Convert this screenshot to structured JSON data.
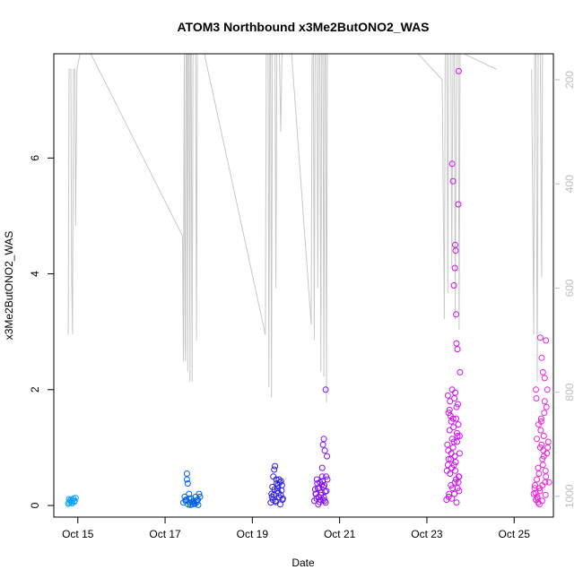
{
  "chart_data": {
    "type": "scatter",
    "title": "ATOM3 Northbound x3Me2ButONO2_WAS",
    "xlabel": "Date",
    "ylabel": "x3Me2ButONO2_WAS",
    "x_ticks": [
      "Oct 15",
      "Oct 17",
      "Oct 19",
      "Oct 21",
      "Oct 23",
      "Oct 25"
    ],
    "x_tick_days": [
      15,
      17,
      19,
      21,
      23,
      25
    ],
    "xlim_days": [
      14.45,
      25.9
    ],
    "y_ticks": [
      0,
      2,
      4,
      6
    ],
    "ylim": [
      -0.2,
      7.8
    ],
    "y2_ticks": [
      200,
      400,
      600,
      800,
      1000
    ],
    "y2lim": [
      1040,
      150
    ],
    "grid": false,
    "legend": "none",
    "colors": {
      "axis": "#000000",
      "secondary_axis": "#bebebe",
      "pressure_line": "#c8c8c8",
      "group_colors": [
        "#0aa2ff",
        "#0060f0",
        "#2f1ee6",
        "#8010f0",
        "#cc11ee",
        "#ee22dd"
      ]
    },
    "series": [
      {
        "group": 1,
        "x": [
          14.8,
          14.82,
          14.84,
          14.86,
          14.88,
          14.9,
          14.92,
          14.95,
          14.78,
          14.8,
          14.87,
          14.93
        ],
        "y": [
          0.05,
          0.08,
          0.1,
          0.06,
          0.09,
          0.12,
          0.07,
          0.13,
          0.03,
          0.11,
          0.04,
          0.08
        ]
      },
      {
        "group": 2,
        "x": [
          17.42,
          17.45,
          17.48,
          17.5,
          17.52,
          17.55,
          17.57,
          17.6,
          17.63,
          17.65,
          17.68,
          17.7,
          17.72,
          17.75,
          17.78,
          17.8,
          17.5,
          17.53,
          17.47,
          17.58,
          17.62,
          17.67,
          17.73,
          17.76,
          17.55
        ],
        "y": [
          0.05,
          0.15,
          0.1,
          0.55,
          0.38,
          0.2,
          0.05,
          0.12,
          0.02,
          0.08,
          0.03,
          0.15,
          0.05,
          0.1,
          0.2,
          0.15,
          0.45,
          0.02,
          0.08,
          0.01,
          0.06,
          0.04,
          0.09,
          0.01,
          0.12
        ]
      },
      {
        "group": 3,
        "x": [
          19.42,
          19.45,
          19.47,
          19.5,
          19.52,
          19.55,
          19.58,
          19.6,
          19.63,
          19.65,
          19.68,
          19.7,
          19.48,
          19.53,
          19.57,
          19.62,
          19.66,
          19.44,
          19.51,
          19.59,
          19.64,
          19.69,
          19.46,
          19.54,
          19.61,
          19.67,
          19.49,
          19.56
        ],
        "y": [
          0.05,
          0.15,
          0.1,
          0.62,
          0.68,
          0.45,
          0.3,
          0.22,
          0.4,
          0.18,
          0.35,
          0.12,
          0.5,
          0.08,
          0.25,
          0.14,
          0.42,
          0.2,
          0.28,
          0.35,
          0.02,
          0.1,
          0.32,
          0.06,
          0.45,
          0.26,
          0.18,
          0.38
        ]
      },
      {
        "group": 4,
        "x": [
          20.42,
          20.45,
          20.48,
          20.5,
          20.52,
          20.55,
          20.58,
          20.6,
          20.62,
          20.65,
          20.68,
          20.7,
          20.72,
          20.47,
          20.53,
          20.57,
          20.61,
          20.66,
          20.44,
          20.51,
          20.59,
          20.64,
          20.69,
          20.46,
          20.54,
          20.63,
          20.67,
          20.49,
          20.56,
          20.6,
          20.71,
          20.62,
          20.64,
          20.66,
          20.68
        ],
        "y": [
          0.08,
          0.2,
          0.45,
          0.3,
          0.15,
          0.4,
          0.22,
          0.5,
          0.1,
          0.35,
          0.05,
          0.25,
          0.45,
          0.12,
          0.3,
          0.18,
          0.42,
          0.08,
          0.28,
          0.02,
          0.36,
          0.14,
          0.5,
          0.2,
          0.06,
          0.32,
          0.24,
          0.38,
          0.1,
          0.65,
          0.85,
          1.05,
          1.15,
          0.95,
          2.0
        ]
      },
      {
        "group": 5,
        "x": [
          23.45,
          23.48,
          23.5,
          23.52,
          23.55,
          23.58,
          23.6,
          23.62,
          23.65,
          23.68,
          23.7,
          23.72,
          23.75,
          23.5,
          23.53,
          23.56,
          23.59,
          23.63,
          23.66,
          23.69,
          23.73,
          23.47,
          23.51,
          23.54,
          23.57,
          23.61,
          23.64,
          23.67,
          23.71,
          23.74,
          23.49,
          23.52,
          23.55,
          23.58,
          23.62,
          23.65,
          23.68,
          23.72,
          23.46,
          23.5,
          23.53,
          23.57,
          23.6,
          23.64,
          23.67,
          23.7,
          23.75,
          23.48,
          23.56,
          23.63,
          23.69,
          23.74,
          23.58,
          23.6,
          23.62,
          23.64,
          23.65,
          23.66,
          23.67,
          23.68,
          23.7,
          23.72,
          23.73,
          23.76
        ],
        "y": [
          0.1,
          1.9,
          1.6,
          1.3,
          0.8,
          2.0,
          1.5,
          1.1,
          0.6,
          1.7,
          1.2,
          0.4,
          0.9,
          0.15,
          0.55,
          1.45,
          0.3,
          1.85,
          0.75,
          1.25,
          0.5,
          1.05,
          0.2,
          1.55,
          0.65,
          1.35,
          0.85,
          0.45,
          1.75,
          0.25,
          0.95,
          1.65,
          0.35,
          1.15,
          0.7,
          1.95,
          0.05,
          1.4,
          0.6,
          0.8,
          1.8,
          0.12,
          1.0,
          0.4,
          1.5,
          0.3,
          1.2,
          0.7,
          0.9,
          0.2,
          1.1,
          0.5,
          5.9,
          5.6,
          3.8,
          4.1,
          4.5,
          4.4,
          3.3,
          2.8,
          2.7,
          5.2,
          7.5,
          2.3
        ]
      },
      {
        "group": 6,
        "x": [
          25.45,
          25.48,
          25.5,
          25.52,
          25.55,
          25.58,
          25.6,
          25.62,
          25.65,
          25.68,
          25.7,
          25.72,
          25.75,
          25.8,
          25.5,
          25.53,
          25.56,
          25.59,
          25.63,
          25.66,
          25.69,
          25.73,
          25.78,
          25.47,
          25.51,
          25.54,
          25.57,
          25.61,
          25.64,
          25.67,
          25.71,
          25.74,
          25.49,
          25.52,
          25.55,
          25.58,
          25.62,
          25.65,
          25.68,
          25.72,
          25.77,
          25.6,
          25.63,
          25.66,
          25.7,
          25.73,
          25.76
        ],
        "y": [
          0.2,
          0.35,
          0.1,
          0.45,
          0.05,
          0.3,
          1.0,
          1.5,
          0.8,
          1.2,
          1.8,
          0.6,
          0.9,
          0.4,
          2.0,
          0.15,
          1.4,
          0.25,
          1.05,
          0.7,
          1.6,
          0.5,
          1.1,
          0.3,
          1.85,
          0.12,
          0.55,
          1.3,
          0.08,
          0.95,
          0.4,
          1.7,
          0.22,
          1.15,
          0.65,
          0.02,
          1.45,
          0.35,
          0.85,
          0.18,
          1.0,
          2.9,
          2.55,
          2.3,
          2.2,
          2.85,
          2.0
        ]
      }
    ],
    "pressure_segments": [
      [
        [
          14.78,
          689
        ],
        [
          14.8,
          180
        ],
        [
          14.84,
          180
        ],
        [
          14.86,
          580
        ],
        [
          14.88,
          689
        ],
        [
          14.9,
          180
        ],
        [
          14.93,
          180
        ],
        [
          14.95,
          480
        ],
        [
          14.98,
          180
        ],
        [
          15.05,
          150
        ]
      ],
      [
        [
          15.3,
          150
        ],
        [
          17.4,
          500
        ],
        [
          17.42,
          740
        ],
        [
          17.43,
          360
        ],
        [
          17.44,
          150
        ],
        [
          17.46,
          710
        ],
        [
          17.47,
          740
        ],
        [
          17.48,
          150
        ],
        [
          17.5,
          150
        ],
        [
          17.52,
          760
        ],
        [
          17.53,
          150
        ],
        [
          17.55,
          150
        ],
        [
          17.57,
          780
        ],
        [
          17.58,
          150
        ],
        [
          17.6,
          150
        ],
        [
          17.62,
          780
        ],
        [
          17.64,
          150
        ],
        [
          17.7,
          150
        ],
        [
          17.72,
          700
        ],
        [
          17.74,
          150
        ],
        [
          17.78,
          150
        ]
      ],
      [
        [
          17.9,
          150
        ],
        [
          19.3,
          690
        ],
        [
          19.32,
          150
        ],
        [
          19.36,
          150
        ],
        [
          19.38,
          790
        ],
        [
          19.4,
          150
        ],
        [
          19.42,
          150
        ],
        [
          19.44,
          810
        ],
        [
          19.46,
          150
        ],
        [
          19.52,
          150
        ],
        [
          19.54,
          600
        ],
        [
          19.56,
          150
        ],
        [
          19.62,
          150
        ],
        [
          19.65,
          300
        ],
        [
          19.68,
          150
        ],
        [
          19.72,
          150
        ]
      ],
      [
        [
          19.9,
          150
        ],
        [
          20.35,
          670
        ],
        [
          20.37,
          150
        ],
        [
          20.4,
          150
        ],
        [
          20.42,
          700
        ],
        [
          20.44,
          150
        ],
        [
          20.48,
          150
        ],
        [
          20.5,
          600
        ],
        [
          20.52,
          150
        ],
        [
          20.55,
          150
        ],
        [
          20.57,
          760
        ],
        [
          20.59,
          150
        ],
        [
          20.62,
          150
        ],
        [
          20.64,
          770
        ],
        [
          20.66,
          150
        ],
        [
          20.68,
          150
        ],
        [
          20.7,
          820
        ],
        [
          20.72,
          150
        ]
      ],
      [
        [
          21.5,
          150
        ],
        [
          22.8,
          150
        ],
        [
          23.35,
          200
        ],
        [
          23.4,
          660
        ],
        [
          23.42,
          150
        ],
        [
          23.46,
          150
        ],
        [
          23.48,
          610
        ],
        [
          23.5,
          150
        ],
        [
          23.55,
          150
        ],
        [
          23.57,
          560
        ],
        [
          23.6,
          150
        ],
        [
          23.63,
          150
        ],
        [
          23.65,
          660
        ],
        [
          23.68,
          150
        ],
        [
          23.72,
          150
        ],
        [
          23.74,
          680
        ],
        [
          23.76,
          150
        ],
        [
          23.8,
          150
        ],
        [
          23.85,
          150
        ],
        [
          24.6,
          180
        ]
      ],
      [
        [
          25.4,
          180
        ],
        [
          25.45,
          690
        ],
        [
          25.47,
          150
        ],
        [
          25.5,
          150
        ],
        [
          25.53,
          780
        ],
        [
          25.55,
          150
        ],
        [
          25.6,
          150
        ],
        [
          25.63,
          580
        ],
        [
          25.65,
          150
        ],
        [
          25.7,
          150
        ]
      ]
    ]
  }
}
